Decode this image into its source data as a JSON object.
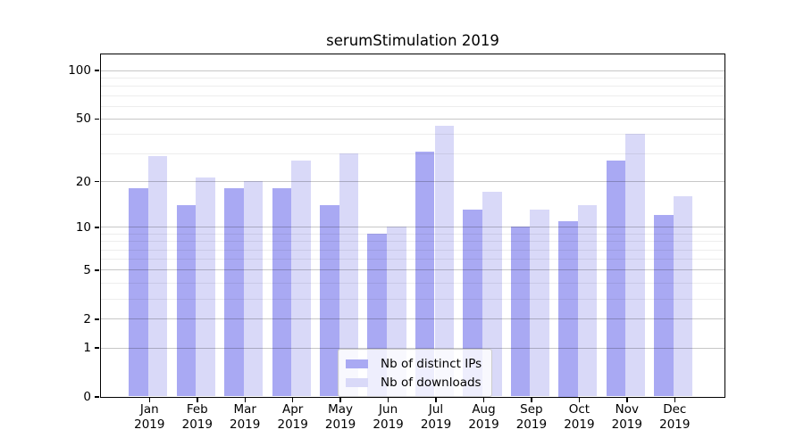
{
  "chart_data": {
    "type": "bar",
    "title": "serumStimulation 2019",
    "categories": [
      "Jan",
      "Feb",
      "Mar",
      "Apr",
      "May",
      "Jun",
      "Jul",
      "Aug",
      "Sep",
      "Oct",
      "Nov",
      "Dec"
    ],
    "year_label": "2019",
    "series": [
      {
        "name": "Nb of distinct IPs",
        "color": "#a9a9f3",
        "values": [
          18,
          14,
          18,
          18,
          14,
          9,
          31,
          13,
          10,
          11,
          27,
          12
        ]
      },
      {
        "name": "Nb of downloads",
        "color": "#d9d9f8",
        "values": [
          29,
          21,
          20,
          27,
          30,
          10,
          45,
          17,
          13,
          14,
          40,
          16
        ]
      }
    ],
    "y_axis": {
      "scale": "log10(1+x)",
      "tick_values": [
        0,
        1,
        2,
        5,
        10,
        20,
        50,
        100
      ],
      "major_gridlines": [
        1,
        2,
        5,
        10,
        20,
        50,
        100
      ],
      "minor_gridlines": [
        3,
        4,
        6,
        7,
        8,
        9,
        30,
        40,
        60,
        70,
        80,
        90
      ]
    },
    "legend_position": "lower center",
    "grid": "on"
  }
}
